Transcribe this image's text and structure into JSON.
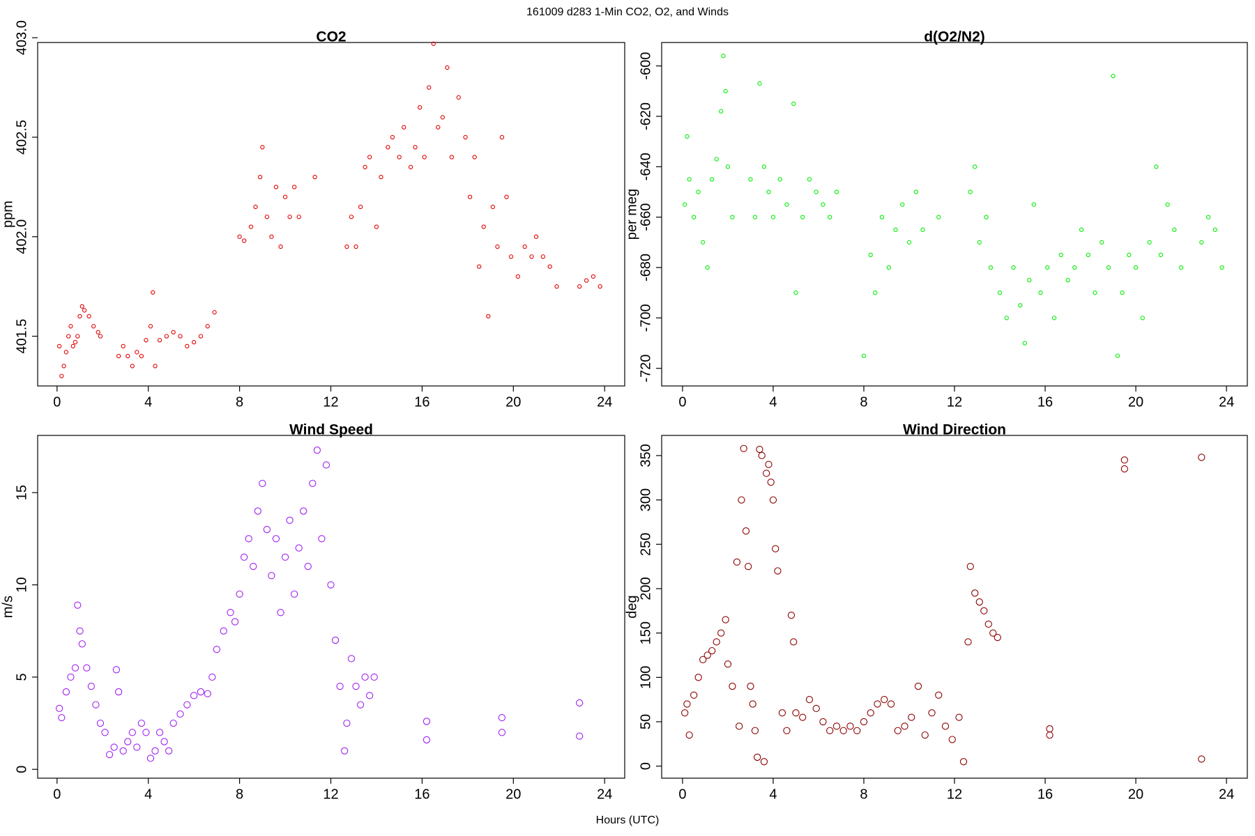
{
  "title": "161009   d283   1-Min CO2, O2, and Winds",
  "xlabel": "Hours (UTC)",
  "chart_data": [
    {
      "type": "scatter",
      "title": "CO2",
      "ylabel": "ppm",
      "color": "#e00000",
      "xlim": [
        -0.85,
        24.88
      ],
      "xticks": [
        0,
        4,
        8,
        12,
        16,
        20,
        24
      ],
      "ylim": [
        401.25,
        402.976
      ],
      "yticks": [
        401.5,
        {
          "value": 402,
          "label": "402.0"
        },
        402.5,
        {
          "value": 403,
          "label": "403.0"
        }
      ],
      "x": [
        0.1,
        0.2,
        0.3,
        0.4,
        0.5,
        0.6,
        0.7,
        0.8,
        0.9,
        1.0,
        1.1,
        1.2,
        1.4,
        1.6,
        1.8,
        1.9,
        2.7,
        2.9,
        3.1,
        3.3,
        3.5,
        3.7,
        3.9,
        4.1,
        4.2,
        4.3,
        4.5,
        4.8,
        5.1,
        5.4,
        5.7,
        6.0,
        6.3,
        6.6,
        6.9,
        8.0,
        8.2,
        8.5,
        8.7,
        8.9,
        9.0,
        9.2,
        9.4,
        9.6,
        9.8,
        10.0,
        10.2,
        10.4,
        10.6,
        11.3,
        12.7,
        12.9,
        13.1,
        13.3,
        13.5,
        13.7,
        14.0,
        14.2,
        14.5,
        14.7,
        15.0,
        15.2,
        15.5,
        15.7,
        15.9,
        16.1,
        16.3,
        16.5,
        16.7,
        16.9,
        17.1,
        17.3,
        17.6,
        17.9,
        18.1,
        18.3,
        18.5,
        18.7,
        18.9,
        19.1,
        19.3,
        19.5,
        19.7,
        19.9,
        20.2,
        20.5,
        20.8,
        21.0,
        21.3,
        21.6,
        21.9,
        22.9,
        23.2,
        23.5,
        23.8
      ],
      "values": [
        401.45,
        401.3,
        401.35,
        401.42,
        401.5,
        401.55,
        401.45,
        401.47,
        401.5,
        401.6,
        401.65,
        401.63,
        401.6,
        401.55,
        401.52,
        401.5,
        401.4,
        401.45,
        401.4,
        401.35,
        401.42,
        401.4,
        401.48,
        401.55,
        401.72,
        401.35,
        401.48,
        401.5,
        401.52,
        401.5,
        401.45,
        401.47,
        401.5,
        401.55,
        401.62,
        402.0,
        401.98,
        402.05,
        402.15,
        402.3,
        402.45,
        402.1,
        402.0,
        402.25,
        401.95,
        402.2,
        402.1,
        402.25,
        402.1,
        402.3,
        401.95,
        402.1,
        401.95,
        402.15,
        402.35,
        402.4,
        402.05,
        402.3,
        402.45,
        402.5,
        402.4,
        402.55,
        402.35,
        402.45,
        402.65,
        402.4,
        402.75,
        402.97,
        402.55,
        402.6,
        402.85,
        402.4,
        402.7,
        402.5,
        402.2,
        402.4,
        401.85,
        402.05,
        401.6,
        402.15,
        401.95,
        402.5,
        402.2,
        401.9,
        401.8,
        401.95,
        401.9,
        402.0,
        401.9,
        401.85,
        401.75,
        401.75,
        401.78,
        401.8,
        401.75
      ]
    },
    {
      "type": "scatter",
      "title": "d(O2/N2)",
      "ylabel": "per meg",
      "color": "#00ee00",
      "xlim": [
        -0.92,
        24.92
      ],
      "xticks": [
        0,
        4,
        8,
        12,
        16,
        20,
        24
      ],
      "ylim": [
        -727,
        -590.7
      ],
      "yticks": [
        -720,
        -700,
        -680,
        -660,
        -640,
        -620,
        -600
      ],
      "x": [
        0.1,
        0.2,
        0.3,
        0.5,
        0.7,
        0.9,
        1.1,
        1.3,
        1.5,
        1.7,
        1.8,
        1.9,
        2.0,
        2.2,
        3.0,
        3.2,
        3.4,
        3.6,
        3.8,
        4.0,
        4.3,
        4.6,
        4.9,
        5.0,
        5.3,
        5.6,
        5.9,
        6.2,
        6.5,
        6.8,
        8.0,
        8.3,
        8.5,
        8.8,
        9.1,
        9.4,
        9.7,
        10.0,
        10.3,
        10.6,
        11.3,
        12.7,
        12.9,
        13.1,
        13.4,
        13.6,
        14.0,
        14.3,
        14.6,
        14.9,
        15.1,
        15.3,
        15.5,
        15.8,
        16.1,
        16.4,
        16.7,
        17.0,
        17.3,
        17.6,
        17.9,
        18.2,
        18.5,
        18.8,
        19.0,
        19.2,
        19.4,
        19.7,
        20.0,
        20.3,
        20.6,
        20.9,
        21.1,
        21.4,
        21.7,
        22.0,
        22.9,
        23.2,
        23.5,
        23.8
      ],
      "values": [
        -655,
        -628,
        -645,
        -660,
        -650,
        -670,
        -680,
        -645,
        -637,
        -618,
        -596,
        -610,
        -640,
        -660,
        -645,
        -660,
        -607,
        -640,
        -650,
        -660,
        -645,
        -655,
        -615,
        -690,
        -660,
        -645,
        -650,
        -655,
        -660,
        -650,
        -715,
        -675,
        -690,
        -660,
        -680,
        -665,
        -655,
        -670,
        -650,
        -665,
        -660,
        -650,
        -640,
        -670,
        -660,
        -680,
        -690,
        -700,
        -680,
        -695,
        -710,
        -685,
        -655,
        -690,
        -680,
        -700,
        -675,
        -685,
        -680,
        -665,
        -675,
        -690,
        -670,
        -680,
        -604,
        -715,
        -690,
        -675,
        -680,
        -700,
        -670,
        -640,
        -675,
        -655,
        -665,
        -680,
        -670,
        -660,
        -665,
        -680
      ]
    },
    {
      "type": "scatter",
      "title": "Wind Speed",
      "ylabel": "m/s",
      "color": "#a020f0",
      "xlim": [
        -0.85,
        24.88
      ],
      "xticks": [
        0,
        4,
        8,
        12,
        16,
        20,
        24
      ],
      "ylim": [
        -0.48,
        18.1
      ],
      "yticks": [
        0,
        5,
        10,
        15
      ],
      "x": [
        0.1,
        0.2,
        0.4,
        0.6,
        0.8,
        0.9,
        1.0,
        1.1,
        1.3,
        1.5,
        1.7,
        1.9,
        2.1,
        2.3,
        2.5,
        2.6,
        2.7,
        2.9,
        3.1,
        3.3,
        3.5,
        3.7,
        3.9,
        4.1,
        4.3,
        4.5,
        4.7,
        4.9,
        5.1,
        5.4,
        5.7,
        6.0,
        6.3,
        6.6,
        6.8,
        7.0,
        7.3,
        7.6,
        7.8,
        8.0,
        8.2,
        8.4,
        8.6,
        8.8,
        9.0,
        9.2,
        9.4,
        9.6,
        9.8,
        10.0,
        10.2,
        10.4,
        10.6,
        10.8,
        11.0,
        11.2,
        11.4,
        11.6,
        11.8,
        12.0,
        12.2,
        12.4,
        12.6,
        12.7,
        12.9,
        13.1,
        13.3,
        13.5,
        13.7,
        13.9,
        16.2,
        16.2,
        19.5,
        19.5,
        22.9,
        22.9
      ],
      "values": [
        3.3,
        2.8,
        4.2,
        5.0,
        5.5,
        8.9,
        7.5,
        6.8,
        5.5,
        4.5,
        3.5,
        2.5,
        2.0,
        0.8,
        1.2,
        5.4,
        4.2,
        1.0,
        1.5,
        2.0,
        1.2,
        2.5,
        2.0,
        0.6,
        1.0,
        2.0,
        1.5,
        1.0,
        2.5,
        3.0,
        3.5,
        4.0,
        4.2,
        4.1,
        5.0,
        6.5,
        7.5,
        8.5,
        8.0,
        9.5,
        11.5,
        12.5,
        11.0,
        14.0,
        15.5,
        13.0,
        10.5,
        12.5,
        8.5,
        11.5,
        13.5,
        9.5,
        12.0,
        14.0,
        11.0,
        15.5,
        17.3,
        12.5,
        16.5,
        10.0,
        7.0,
        4.5,
        1.0,
        2.5,
        6.0,
        4.5,
        3.5,
        5.0,
        4.0,
        5.0,
        2.6,
        1.6,
        2.8,
        2.0,
        3.6,
        1.8
      ]
    },
    {
      "type": "scatter",
      "title": "Wind Direction",
      "ylabel": "deg",
      "color": "#8b0000",
      "xlim": [
        -0.92,
        24.92
      ],
      "xticks": [
        0,
        4,
        8,
        12,
        16,
        20,
        24
      ],
      "ylim": [
        -13.6,
        372.7
      ],
      "yticks": [
        0,
        50,
        100,
        150,
        200,
        250,
        300,
        350
      ],
      "x": [
        0.1,
        0.2,
        0.3,
        0.5,
        0.7,
        0.9,
        1.1,
        1.3,
        1.5,
        1.7,
        1.9,
        2.0,
        2.2,
        2.4,
        2.5,
        2.6,
        2.7,
        2.8,
        2.9,
        3.0,
        3.1,
        3.2,
        3.3,
        3.4,
        3.5,
        3.6,
        3.7,
        3.8,
        3.9,
        4.0,
        4.1,
        4.2,
        4.4,
        4.6,
        4.8,
        4.9,
        5.0,
        5.3,
        5.6,
        5.9,
        6.2,
        6.5,
        6.8,
        7.1,
        7.4,
        7.7,
        8.0,
        8.3,
        8.6,
        8.9,
        9.2,
        9.5,
        9.8,
        10.1,
        10.4,
        10.7,
        11.0,
        11.3,
        11.6,
        11.9,
        12.2,
        12.4,
        12.6,
        12.7,
        12.9,
        13.1,
        13.3,
        13.5,
        13.7,
        13.9,
        16.2,
        16.2,
        19.5,
        19.5,
        22.9,
        22.9
      ],
      "values": [
        60,
        70,
        35,
        80,
        100,
        120,
        125,
        130,
        140,
        150,
        165,
        115,
        90,
        230,
        45,
        300,
        358,
        265,
        225,
        90,
        70,
        40,
        10,
        357,
        350,
        5,
        330,
        340,
        320,
        300,
        245,
        220,
        60,
        40,
        170,
        140,
        60,
        55,
        75,
        65,
        50,
        40,
        45,
        40,
        45,
        40,
        50,
        60,
        70,
        75,
        70,
        40,
        45,
        55,
        90,
        35,
        60,
        80,
        45,
        30,
        55,
        5,
        140,
        225,
        195,
        185,
        175,
        160,
        150,
        145,
        42,
        35,
        345,
        335,
        348,
        8
      ]
    }
  ]
}
